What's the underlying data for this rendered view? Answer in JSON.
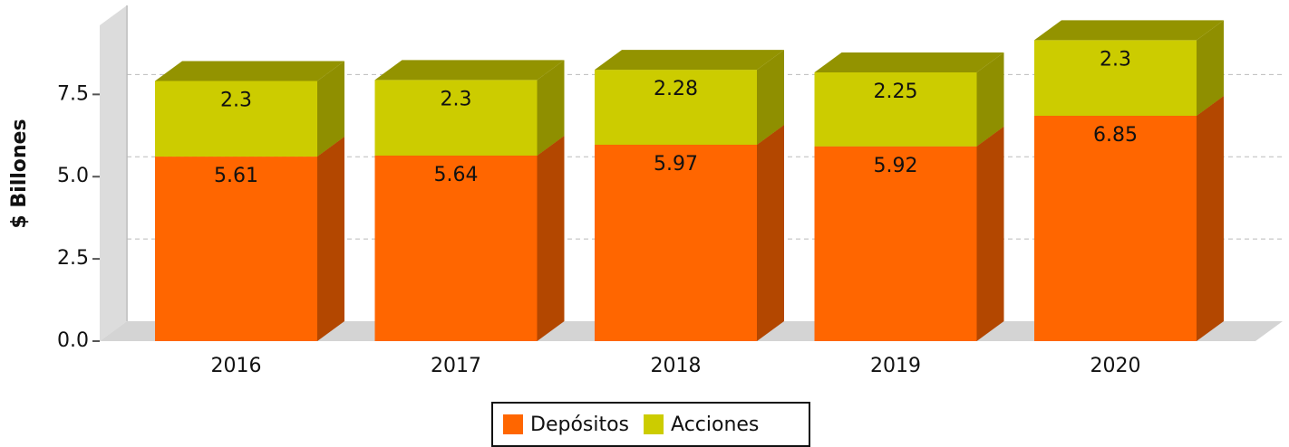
{
  "chart_data": {
    "type": "bar3d_stacked",
    "ylabel": "$ Billones",
    "categories": [
      "2016",
      "2017",
      "2018",
      "2019",
      "2020"
    ],
    "series": [
      {
        "name": "Depósitos",
        "color": "#ff6600",
        "values": [
          5.61,
          5.64,
          5.97,
          5.92,
          6.85
        ]
      },
      {
        "name": "Acciones",
        "color": "#cccc00",
        "values": [
          2.3,
          2.3,
          2.28,
          2.25,
          2.3
        ]
      }
    ],
    "ylim": [
      0,
      9.6
    ],
    "yticks": [
      {
        "value": 0,
        "label": "0.0"
      },
      2.5,
      {
        "value": 5,
        "label": "5.0"
      },
      7.5
    ],
    "grid": true,
    "legend": "bottom"
  }
}
